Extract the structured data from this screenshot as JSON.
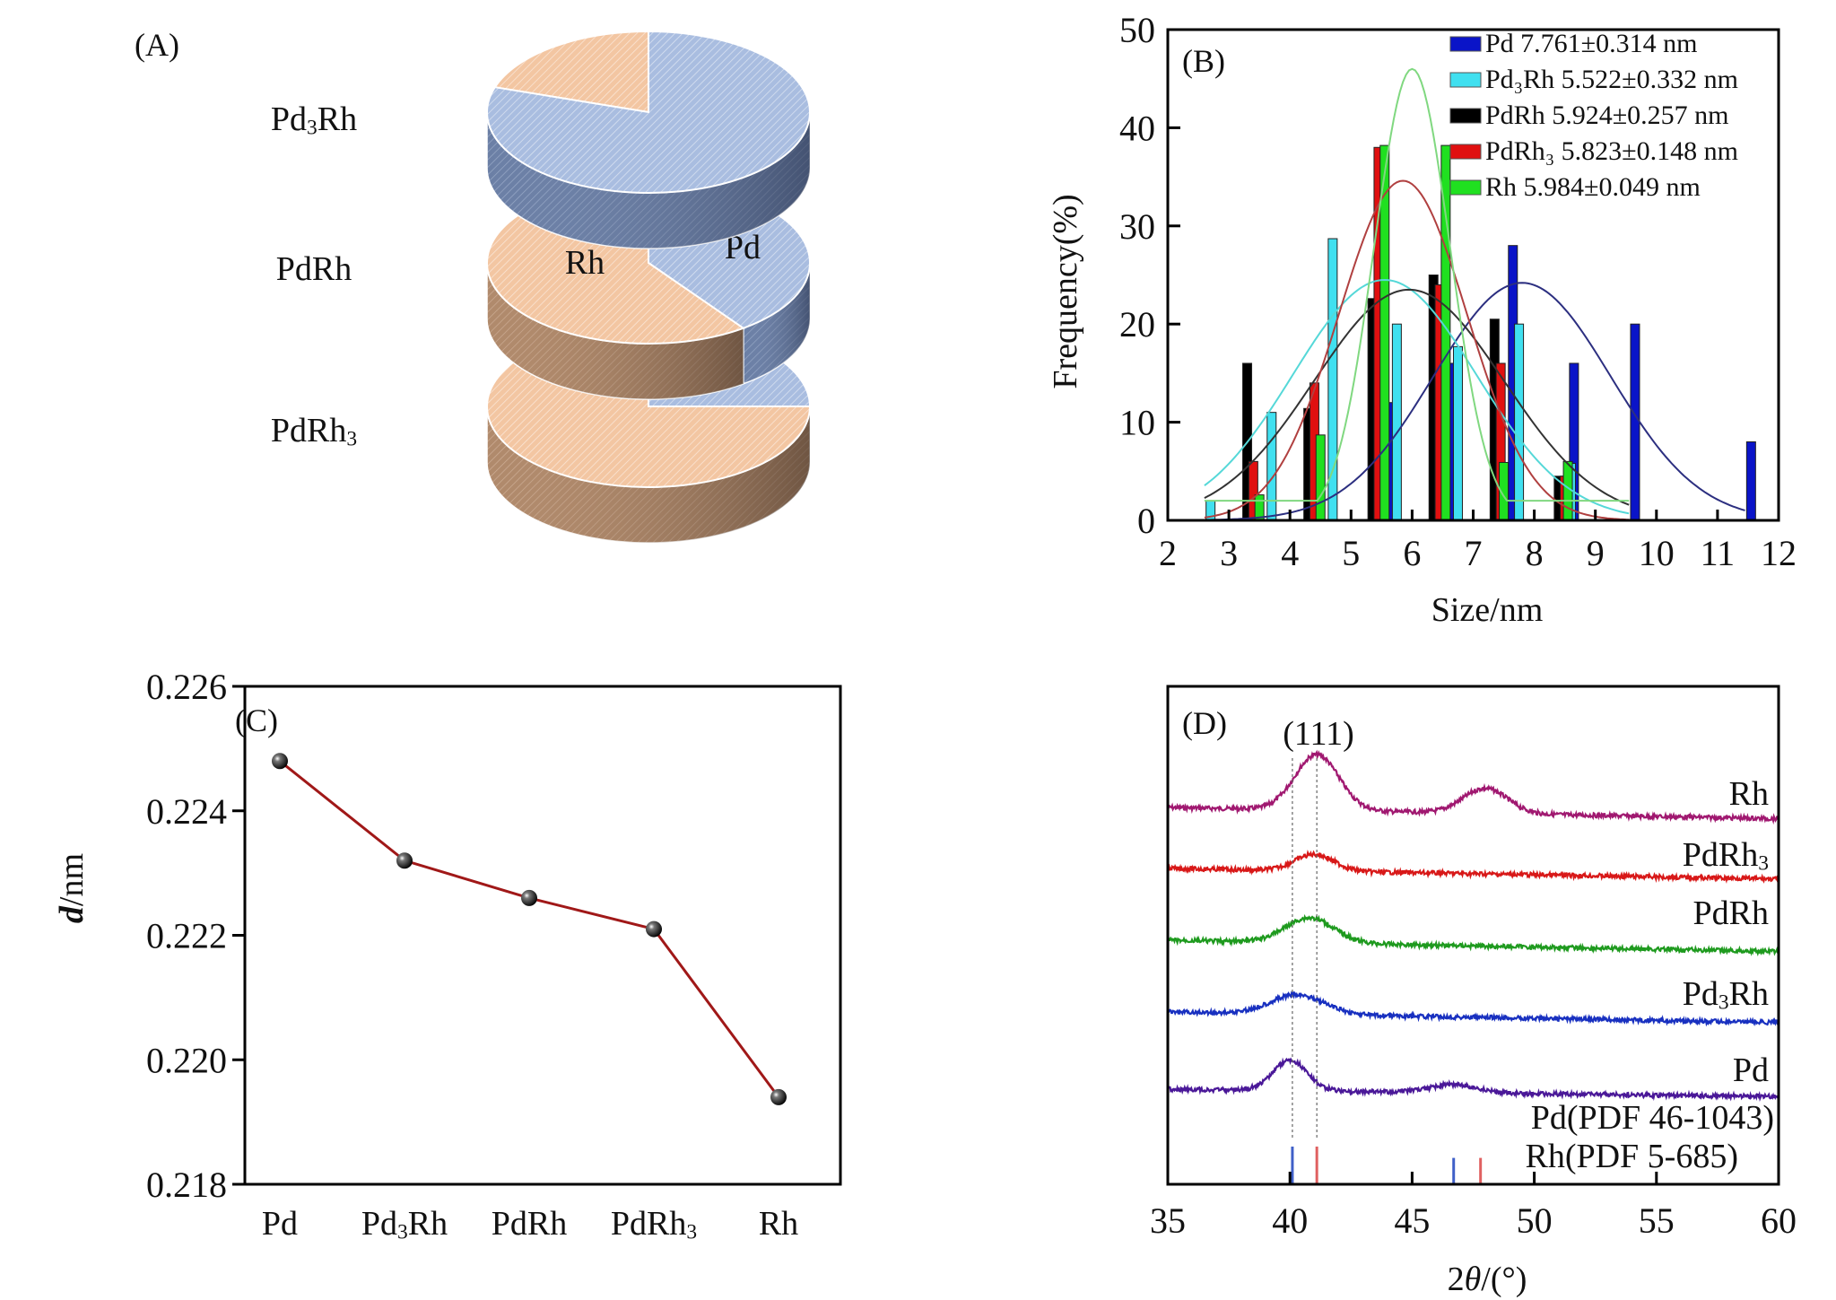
{
  "chart_data": [
    {
      "panel": "(A)",
      "type": "pie",
      "title": "",
      "slice_labels": [
        "Pd",
        "Rh"
      ],
      "colors": {
        "Pd": "#a9bde0",
        "Rh": "#f3c6a2"
      },
      "pies": [
        {
          "label": "Pd3Rh",
          "label_main": "Pd",
          "label_sub": "3",
          "label_tail": "Rh",
          "values": {
            "Pd": 80,
            "Rh": 20
          }
        },
        {
          "label": "PdRh",
          "label_main": "PdRh",
          "label_sub": "",
          "label_tail": "",
          "values": {
            "Pd": 40,
            "Rh": 60
          },
          "annotations": [
            "Rh",
            "Pd"
          ]
        },
        {
          "label": "PdRh3",
          "label_main": "PdRh",
          "label_sub": "3",
          "label_tail": "",
          "values": {
            "Pd": 25,
            "Rh": 75
          }
        }
      ]
    },
    {
      "panel": "(B)",
      "type": "bar",
      "xlabel": "Size/nm",
      "ylabel": "Frequency(%)",
      "xlim": [
        2,
        12
      ],
      "ylim": [
        0,
        50
      ],
      "xticks": [
        2,
        3,
        4,
        5,
        6,
        7,
        8,
        9,
        10,
        11,
        12
      ],
      "yticks": [
        0,
        10,
        20,
        30,
        40,
        50
      ],
      "legend_position": "top-right",
      "series": [
        {
          "name": "Pd 7.761±0.314 nm",
          "label_main": "Pd 7.761±0.314 nm",
          "color": "#0a14c8",
          "fit_color": "#2c2f80",
          "mean": 7.761,
          "fit": {
            "mu": 7.8,
            "sigma": 1.45,
            "amp": 24.2
          },
          "bars": [
            [
              5.65,
              12
            ],
            [
              6.65,
              16
            ],
            [
              7.65,
              28
            ],
            [
              8.65,
              16
            ],
            [
              9.65,
              20
            ],
            [
              11.55,
              8
            ]
          ]
        },
        {
          "name": "Pd3Rh 5.522±0.332 nm",
          "label_main": "Pd₃Rh 5.522±0.332 nm",
          "color": "#40e0f0",
          "fit_color": "#55d8d8",
          "mean": 5.522,
          "fit": {
            "mu": 5.55,
            "sigma": 1.5,
            "amp": 24.5
          },
          "bars": [
            [
              2.7,
              2
            ],
            [
              3.7,
              11
            ],
            [
              4.7,
              28.7
            ],
            [
              5.75,
              20
            ],
            [
              6.75,
              17.7
            ],
            [
              7.75,
              20
            ],
            [
              8.6,
              5.8
            ]
          ]
        },
        {
          "name": "PdRh 5.924±0.257 nm",
          "label_main": "PdRh 5.924±0.257 nm",
          "color": "#000000",
          "fit_color": "#333333",
          "mean": 5.924,
          "fit": {
            "mu": 5.95,
            "sigma": 1.55,
            "amp": 23.5
          },
          "bars": [
            [
              3.3,
              16
            ],
            [
              4.3,
              11.4
            ],
            [
              5.35,
              22.6
            ],
            [
              6.35,
              25
            ],
            [
              7.35,
              20.5
            ],
            [
              8.4,
              4.5
            ]
          ]
        },
        {
          "name": "PdRh3 5.823±0.148 nm",
          "label_main": "PdRh₃ 5.823±0.148 nm",
          "color": "#e01010",
          "fit_color": "#b04040",
          "mean": 5.823,
          "fit": {
            "mu": 5.85,
            "sigma": 1.05,
            "amp": 34.6
          },
          "bars": [
            [
              3.4,
              6
            ],
            [
              4.4,
              14
            ],
            [
              5.45,
              38
            ],
            [
              6.45,
              24
            ],
            [
              7.45,
              16
            ],
            [
              8.5,
              4.5
            ]
          ]
        },
        {
          "name": "Rh 5.984±0.049 nm",
          "label_main": "Rh 5.984±0.049 nm",
          "color": "#20e020",
          "fit_color": "#80d880",
          "mean": 5.984,
          "fit": {
            "mu": 6.0,
            "sigma": 0.62,
            "amp": 46,
            "base": 2
          },
          "bars": [
            [
              3.5,
              2.6
            ],
            [
              4.5,
              8.7
            ],
            [
              5.55,
              38.2
            ],
            [
              6.55,
              38.2
            ],
            [
              7.5,
              5.9
            ],
            [
              8.55,
              6
            ]
          ]
        }
      ]
    },
    {
      "panel": "(C)",
      "type": "line",
      "xlabel": "",
      "ylabel": "d/nm",
      "ylim": [
        0.218,
        0.226
      ],
      "yticks": [
        "0.218",
        "0.220",
        "0.222",
        "0.224",
        "0.226"
      ],
      "categories": [
        {
          "main": "Pd",
          "sub": "",
          "tail": ""
        },
        {
          "main": "Pd",
          "sub": "3",
          "tail": "Rh"
        },
        {
          "main": "PdRh",
          "sub": "",
          "tail": ""
        },
        {
          "main": "PdRh",
          "sub": "3",
          "tail": ""
        },
        {
          "main": "Rh",
          "sub": "",
          "tail": ""
        }
      ],
      "category_names": [
        "Pd",
        "Pd3Rh",
        "PdRh",
        "PdRh3",
        "Rh"
      ],
      "values": [
        0.2248,
        0.2232,
        0.2226,
        0.2221,
        0.2194
      ],
      "line_color": "#a01818",
      "marker_color": "#111111"
    },
    {
      "panel": "(D)",
      "type": "line",
      "xlabel": "2θ/(°)",
      "ylabel": "",
      "xlim": [
        35,
        60
      ],
      "xticks": [
        35,
        40,
        45,
        50,
        55,
        60
      ],
      "peak_annotation": "(111)",
      "series": [
        {
          "name": "Rh",
          "label_main": "Rh",
          "label_sub": "",
          "color": "#a01870",
          "peaks": [
            {
              "pos": 41.1,
              "height": 1.0,
              "width": 0.9
            },
            {
              "pos": 48.0,
              "height": 0.45,
              "width": 0.9
            }
          ],
          "baseline_offset": 4,
          "slope": 0.3,
          "noise": 0.12
        },
        {
          "name": "PdRh3",
          "label_main": "PdRh",
          "label_sub": "3",
          "color": "#d81818",
          "peaks": [
            {
              "pos": 41.0,
              "height": 0.3,
              "width": 0.8
            }
          ],
          "baseline_offset": 3,
          "slope": 0.28,
          "noise": 0.12
        },
        {
          "name": "PdRh",
          "label_main": "PdRh",
          "label_sub": "",
          "color": "#1e9a1e",
          "peaks": [
            {
              "pos": 40.8,
              "height": 0.45,
              "width": 1.0
            }
          ],
          "baseline_offset": 2,
          "slope": 0.3,
          "noise": 0.12
        },
        {
          "name": "Pd3Rh",
          "label_main": "Pd",
          "label_sub": "3",
          "label_tail": "Rh",
          "color": "#1830c0",
          "peaks": [
            {
              "pos": 40.3,
              "height": 0.35,
              "width": 1.1
            }
          ],
          "baseline_offset": 1,
          "slope": 0.28,
          "noise": 0.12
        },
        {
          "name": "Pd",
          "label_main": "Pd",
          "label_sub": "",
          "color": "#4a1898",
          "peaks": [
            {
              "pos": 40.0,
              "height": 0.55,
              "width": 0.7
            },
            {
              "pos": 46.7,
              "height": 0.15,
              "width": 0.9
            }
          ],
          "baseline_offset": 0,
          "slope": 0.2,
          "noise": 0.12
        }
      ],
      "reference_lines": [
        {
          "name": "Pd(PDF 46-1043)",
          "color": "#4060c8",
          "positions": [
            {
              "x": 40.1,
              "rel_height": 1.0
            },
            {
              "x": 46.7,
              "rel_height": 0.7
            }
          ]
        },
        {
          "name": "Rh(PDF 5-685)",
          "color": "#e06060",
          "positions": [
            {
              "x": 41.1,
              "rel_height": 1.0
            },
            {
              "x": 47.8,
              "rel_height": 0.7
            }
          ]
        }
      ],
      "guide_lines": [
        40.1,
        41.1
      ]
    }
  ],
  "panel_labels": {
    "a": "(A)",
    "b": "(B)",
    "c": "(C)",
    "d": "(D)"
  }
}
